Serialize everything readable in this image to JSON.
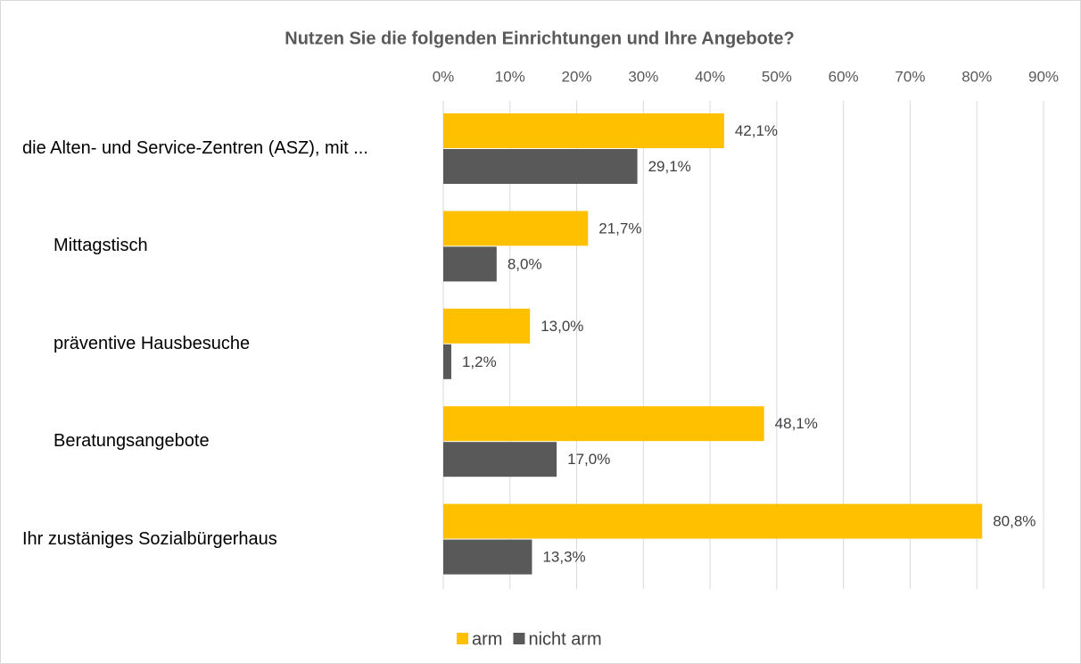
{
  "chart_data": {
    "type": "hbar",
    "title": "Nutzen Sie die folgenden Einrichtungen und Ihre Angebote?",
    "categories": [
      "die Alten- und Service-Zentren (ASZ), mit ...",
      "Mittagstisch",
      "präventive Hausbesuche",
      "Beratungsangebote",
      "Ihr zustäniges Sozialbürgerhaus"
    ],
    "series": [
      {
        "name": "arm",
        "color": "#ffc000",
        "values": [
          42.1,
          21.7,
          13.0,
          48.1,
          80.8
        ],
        "value_labels": [
          "42,1%",
          "21,7%",
          "13,0%",
          "48,1%",
          "80,8%"
        ]
      },
      {
        "name": "nicht arm",
        "color": "#595959",
        "values": [
          29.1,
          8.0,
          1.2,
          17.0,
          13.3
        ],
        "value_labels": [
          "29,1%",
          "8,0%",
          "1,2%",
          "17,0%",
          "13,3%"
        ]
      }
    ],
    "xlim": [
      0,
      90
    ],
    "xticks": [
      {
        "value": 0,
        "label": "0%"
      },
      {
        "value": 10,
        "label": "10%"
      },
      {
        "value": 20,
        "label": "20%"
      },
      {
        "value": 30,
        "label": "30%"
      },
      {
        "value": 40,
        "label": "40%"
      },
      {
        "value": 50,
        "label": "50%"
      },
      {
        "value": 60,
        "label": "60%"
      },
      {
        "value": 70,
        "label": "70%"
      },
      {
        "value": 80,
        "label": "80%"
      },
      {
        "value": 90,
        "label": "90%"
      }
    ],
    "grid": true,
    "legend": "bottom"
  }
}
